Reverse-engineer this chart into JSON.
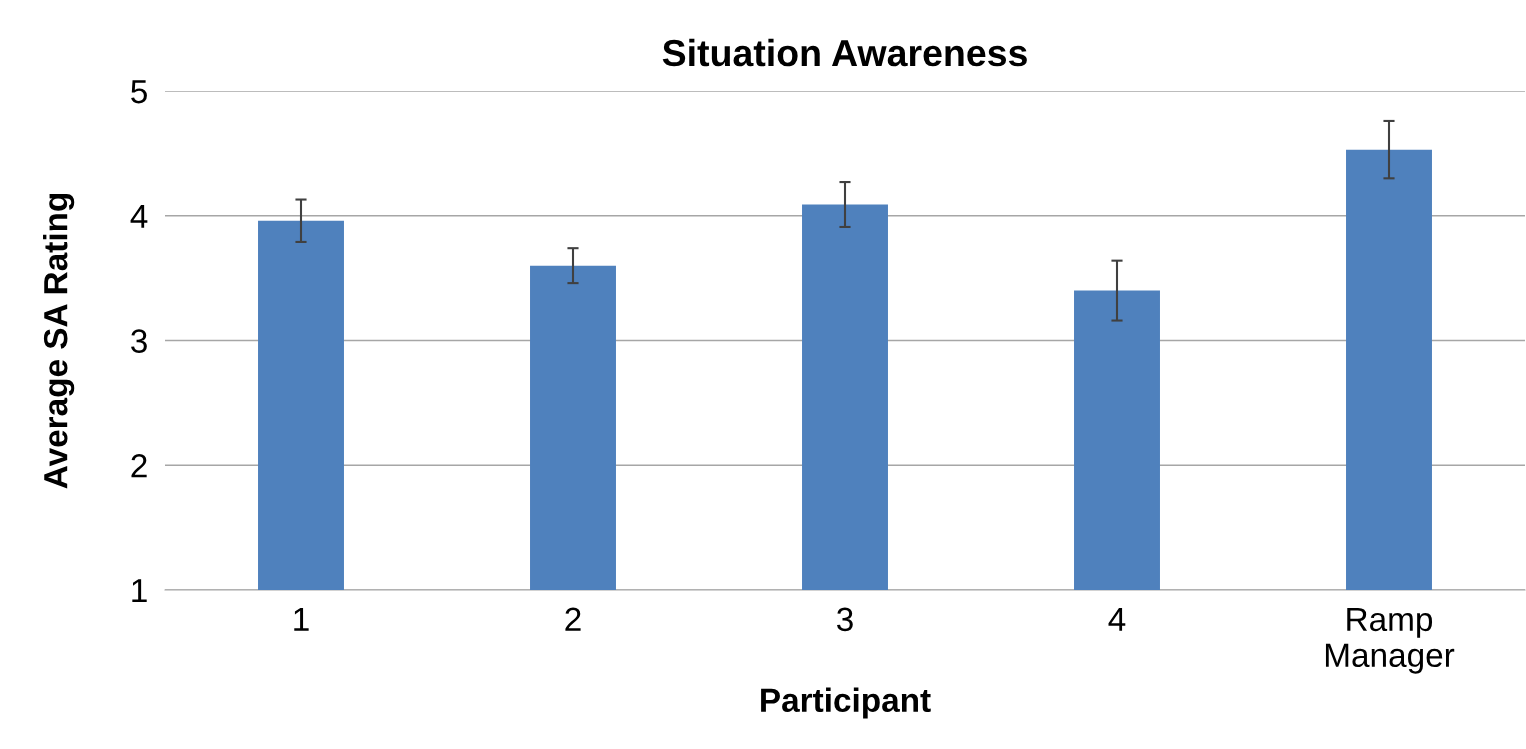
{
  "chart_data": {
    "type": "bar",
    "title": "Situation Awareness",
    "xlabel": "Participant",
    "ylabel": "Average SA Rating",
    "categories": [
      "1",
      "2",
      "3",
      "4",
      "Ramp\nManager"
    ],
    "values": [
      3.96,
      3.6,
      4.09,
      3.4,
      4.53
    ],
    "errors": [
      0.17,
      0.14,
      0.18,
      0.24,
      0.23
    ],
    "color": "#4f81bd",
    "ylim": [
      1,
      5
    ],
    "yticks": [
      1,
      2,
      3,
      4,
      5
    ],
    "grid": "y",
    "legend": false
  }
}
